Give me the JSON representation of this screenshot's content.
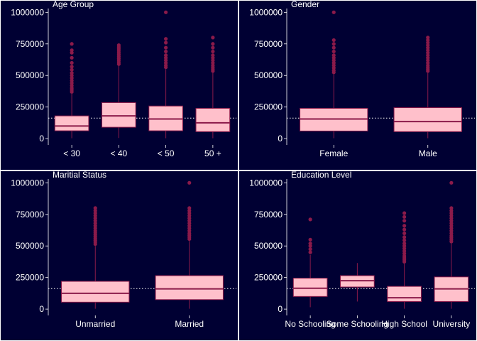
{
  "style": {
    "background": "#000033",
    "panel_border": "#ffffff",
    "box_fill": "#ffc0cb",
    "box_stroke": "#8b1a4a",
    "outlier_color": "#8b1a4a",
    "reference_line": "#ffffff",
    "text_color": "#ffffff"
  },
  "chart_data": [
    {
      "type": "box",
      "title": "Age Group",
      "ylim": [
        -50000,
        1030000
      ],
      "yticks": [
        0,
        250000,
        500000,
        750000,
        1000000
      ],
      "ytick_labels": [
        "0",
        "250000",
        "500000",
        "750000",
        "1000000"
      ],
      "reference_line": 162000,
      "categories": [
        "< 30",
        "< 40",
        "< 50",
        "50 +"
      ],
      "boxes": [
        {
          "q1": 62000,
          "median": 100000,
          "q3": 180000,
          "whisker_low": 3000,
          "whisker_high": 355000,
          "outliers": [
            370000,
            385000,
            400000,
            420000,
            440000,
            460000,
            480000,
            500000,
            520000,
            545000,
            570000,
            600000,
            640000,
            680000,
            700000,
            750000
          ]
        },
        {
          "q1": 90000,
          "median": 180000,
          "q3": 285000,
          "whisker_low": 5000,
          "whisker_high": 580000,
          "outliers": [
            590000,
            605000,
            620000,
            635000,
            650000,
            665000,
            680000,
            695000,
            710000,
            725000,
            740000
          ]
        },
        {
          "q1": 62000,
          "median": 155000,
          "q3": 258000,
          "whisker_low": 3000,
          "whisker_high": 550000,
          "outliers": [
            565000,
            580000,
            600000,
            620000,
            640000,
            660000,
            690000,
            720000,
            760000,
            790000,
            1000000
          ]
        },
        {
          "q1": 55000,
          "median": 125000,
          "q3": 240000,
          "whisker_low": 3000,
          "whisker_high": 520000,
          "outliers": [
            535000,
            550000,
            565000,
            580000,
            600000,
            620000,
            640000,
            660000,
            690000,
            720000,
            750000,
            800000
          ]
        }
      ]
    },
    {
      "type": "box",
      "title": "Gender",
      "ylim": [
        -50000,
        1030000
      ],
      "yticks": [
        0,
        250000,
        500000,
        750000,
        1000000
      ],
      "ytick_labels": [
        "0",
        "250000",
        "500000",
        "750000",
        "1000000"
      ],
      "reference_line": 162000,
      "categories": [
        "Female",
        "Male"
      ],
      "boxes": [
        {
          "q1": 60000,
          "median": 155000,
          "q3": 240000,
          "whisker_low": 3000,
          "whisker_high": 510000,
          "outliers": [
            525000,
            540000,
            560000,
            580000,
            600000,
            620000,
            640000,
            660000,
            690000,
            720000,
            750000,
            780000,
            1000000
          ]
        },
        {
          "q1": 55000,
          "median": 135000,
          "q3": 245000,
          "whisker_low": 3000,
          "whisker_high": 520000,
          "outliers": [
            535000,
            550000,
            565000,
            580000,
            600000,
            620000,
            640000,
            660000,
            680000,
            700000,
            720000,
            740000,
            760000,
            780000,
            800000
          ]
        }
      ]
    },
    {
      "type": "box",
      "title": "Maritial Status",
      "ylim": [
        -50000,
        1030000
      ],
      "yticks": [
        0,
        250000,
        500000,
        750000,
        1000000
      ],
      "ytick_labels": [
        "0",
        "250000",
        "500000",
        "750000",
        "1000000"
      ],
      "reference_line": 162000,
      "categories": [
        "Unmarried",
        "Married"
      ],
      "boxes": [
        {
          "q1": 55000,
          "median": 125000,
          "q3": 220000,
          "whisker_low": 3000,
          "whisker_high": 500000,
          "outliers": [
            515000,
            530000,
            545000,
            560000,
            575000,
            590000,
            605000,
            620000,
            640000,
            660000,
            680000,
            700000,
            720000,
            740000,
            760000,
            780000,
            800000
          ]
        },
        {
          "q1": 75000,
          "median": 160000,
          "q3": 265000,
          "whisker_low": 3000,
          "whisker_high": 540000,
          "outliers": [
            555000,
            570000,
            585000,
            600000,
            620000,
            640000,
            660000,
            680000,
            700000,
            720000,
            740000,
            760000,
            780000,
            800000,
            1000000
          ]
        }
      ]
    },
    {
      "type": "box",
      "title": "Education Level",
      "ylim": [
        -50000,
        1030000
      ],
      "yticks": [
        0,
        250000,
        500000,
        750000,
        1000000
      ],
      "ytick_labels": [
        "0",
        "250000",
        "500000",
        "750000",
        "1000000"
      ],
      "reference_line": 162000,
      "categories": [
        "No Schooling",
        "Some Schooling",
        "High School",
        "University"
      ],
      "boxes": [
        {
          "q1": 100000,
          "median": 165000,
          "q3": 245000,
          "whisker_low": 15000,
          "whisker_high": 430000,
          "outliers": [
            450000,
            475000,
            500000,
            520000,
            550000,
            710000
          ]
        },
        {
          "q1": 175000,
          "median": 225000,
          "q3": 265000,
          "whisker_low": 60000,
          "whisker_high": 365000,
          "outliers": []
        },
        {
          "q1": 60000,
          "median": 90000,
          "q3": 180000,
          "whisker_low": 3000,
          "whisker_high": 360000,
          "outliers": [
            375000,
            390000,
            405000,
            420000,
            440000,
            460000,
            480000,
            500000,
            520000,
            545000,
            570000,
            600000,
            630000,
            660000,
            700000,
            730000,
            760000
          ]
        },
        {
          "q1": 60000,
          "median": 160000,
          "q3": 255000,
          "whisker_low": 3000,
          "whisker_high": 520000,
          "outliers": [
            535000,
            550000,
            565000,
            580000,
            600000,
            620000,
            640000,
            660000,
            680000,
            700000,
            720000,
            740000,
            760000,
            780000,
            800000,
            1000000
          ]
        }
      ]
    }
  ]
}
